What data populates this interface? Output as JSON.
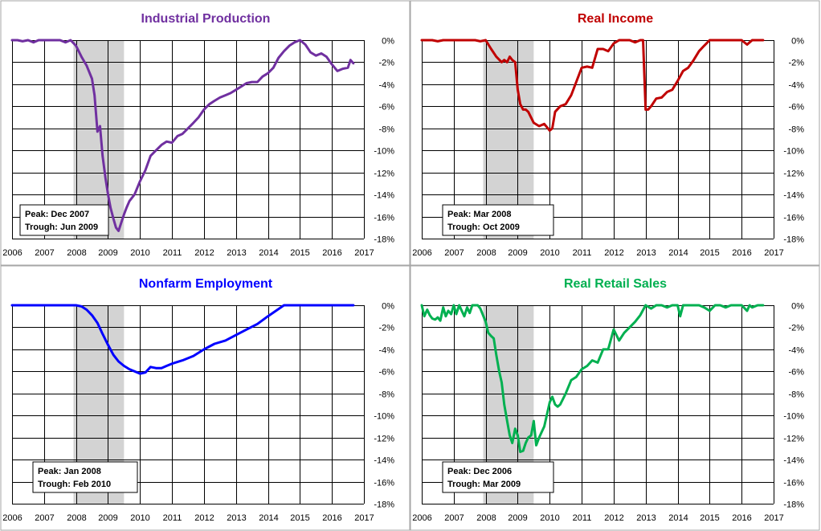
{
  "chart_data": [
    {
      "type": "line",
      "title": "Industrial Production",
      "title_color": "#7030a0",
      "series": [
        {
          "color": "#7030a0",
          "x": [
            2006.0,
            2006.17,
            2006.33,
            2006.5,
            2006.67,
            2006.83,
            2007.0,
            2007.17,
            2007.33,
            2007.5,
            2007.67,
            2007.83,
            2008.0,
            2008.17,
            2008.33,
            2008.5,
            2008.58,
            2008.67,
            2008.75,
            2008.83,
            2008.92,
            2009.0,
            2009.08,
            2009.17,
            2009.25,
            2009.33,
            2009.42,
            2009.5,
            2009.58,
            2009.67,
            2009.83,
            2010.0,
            2010.17,
            2010.33,
            2010.5,
            2010.67,
            2010.83,
            2011.0,
            2011.17,
            2011.33,
            2011.5,
            2011.67,
            2011.83,
            2012.0,
            2012.17,
            2012.33,
            2012.5,
            2012.67,
            2012.83,
            2013.0,
            2013.17,
            2013.33,
            2013.5,
            2013.67,
            2013.83,
            2014.0,
            2014.17,
            2014.33,
            2014.5,
            2014.67,
            2014.83,
            2015.0,
            2015.17,
            2015.33,
            2015.5,
            2015.67,
            2015.83,
            2016.0,
            2016.17,
            2016.33,
            2016.5,
            2016.58,
            2016.67
          ],
          "values": [
            0,
            0,
            -0.1,
            0,
            -0.2,
            0,
            0,
            0,
            0,
            0,
            -0.2,
            0,
            -0.5,
            -1.5,
            -2.3,
            -3.5,
            -5.0,
            -8.3,
            -7.8,
            -10.5,
            -12.5,
            -14.0,
            -15.2,
            -16.2,
            -17.0,
            -17.3,
            -16.5,
            -15.8,
            -15.2,
            -14.6,
            -14.0,
            -12.8,
            -11.8,
            -10.5,
            -10.0,
            -9.5,
            -9.2,
            -9.3,
            -8.7,
            -8.5,
            -8.0,
            -7.5,
            -7.0,
            -6.3,
            -5.8,
            -5.5,
            -5.2,
            -5.0,
            -4.8,
            -4.5,
            -4.2,
            -3.9,
            -3.8,
            -3.8,
            -3.3,
            -3.0,
            -2.5,
            -1.6,
            -1.0,
            -0.5,
            -0.2,
            0,
            -0.4,
            -1.1,
            -1.4,
            -1.2,
            -1.5,
            -2.2,
            -2.8,
            -2.6,
            -2.5,
            -1.8,
            -2.1
          ]
        }
      ],
      "ylim": [
        -18,
        0
      ],
      "ytick_labels": [
        "0%",
        "-2%",
        "-4%",
        "-6%",
        "-8%",
        "-10%",
        "-12%",
        "-14%",
        "-16%",
        "-18%"
      ],
      "xlim": [
        2006,
        2017
      ],
      "xtick_labels": [
        "2006",
        "2007",
        "2008",
        "2009",
        "2010",
        "2011",
        "2012",
        "2013",
        "2014",
        "2015",
        "2016",
        "2017"
      ],
      "recession": [
        2007.92,
        2009.5
      ],
      "annotation": {
        "line1": "Peak: Dec 2007",
        "line2": "Trough: Jun 2009"
      },
      "grid": true
    },
    {
      "type": "line",
      "title": "Real Income",
      "title_color": "#c00000",
      "series": [
        {
          "color": "#c00000",
          "x": [
            2006.0,
            2006.17,
            2006.33,
            2006.5,
            2006.67,
            2006.83,
            2007.0,
            2007.17,
            2007.33,
            2007.5,
            2007.67,
            2007.83,
            2008.0,
            2008.17,
            2008.33,
            2008.5,
            2008.58,
            2008.67,
            2008.75,
            2008.83,
            2008.92,
            2009.0,
            2009.08,
            2009.17,
            2009.25,
            2009.33,
            2009.5,
            2009.67,
            2009.83,
            2010.0,
            2010.08,
            2010.17,
            2010.33,
            2010.5,
            2010.67,
            2010.83,
            2011.0,
            2011.17,
            2011.33,
            2011.5,
            2011.67,
            2011.83,
            2012.0,
            2012.17,
            2012.33,
            2012.5,
            2012.67,
            2012.83,
            2012.92,
            2013.0,
            2013.08,
            2013.17,
            2013.33,
            2013.5,
            2013.67,
            2013.83,
            2014.0,
            2014.17,
            2014.33,
            2014.5,
            2014.67,
            2014.83,
            2015.0,
            2015.17,
            2015.33,
            2015.5,
            2015.67,
            2015.83,
            2016.0,
            2016.17,
            2016.33,
            2016.5,
            2016.67
          ],
          "values": [
            0,
            0,
            0,
            -0.1,
            0,
            0,
            0,
            0,
            0,
            0,
            0,
            -0.1,
            0,
            -0.8,
            -1.5,
            -2.0,
            -1.8,
            -2.0,
            -1.5,
            -1.8,
            -2.0,
            -4.5,
            -5.8,
            -6.3,
            -6.3,
            -6.5,
            -7.5,
            -7.8,
            -7.6,
            -8.2,
            -8.0,
            -6.5,
            -6.0,
            -5.8,
            -5.0,
            -3.8,
            -2.5,
            -2.4,
            -2.5,
            -0.8,
            -0.8,
            -1.0,
            -0.3,
            0,
            0,
            0,
            -0.2,
            0,
            0,
            -6.3,
            -6.3,
            -6.0,
            -5.3,
            -5.2,
            -4.7,
            -4.5,
            -3.7,
            -2.8,
            -2.5,
            -1.8,
            -1.0,
            -0.5,
            0,
            0,
            0,
            0,
            0,
            0,
            0,
            -0.4,
            0,
            0,
            0
          ]
        }
      ],
      "ylim": [
        -18,
        0
      ],
      "ytick_labels": [
        "0%",
        "-2%",
        "-4%",
        "-6%",
        "-8%",
        "-10%",
        "-12%",
        "-14%",
        "-16%",
        "-18%"
      ],
      "xlim": [
        2006,
        2017
      ],
      "xtick_labels": [
        "2006",
        "2007",
        "2008",
        "2009",
        "2010",
        "2011",
        "2012",
        "2013",
        "2014",
        "2015",
        "2016",
        "2017"
      ],
      "recession": [
        2007.92,
        2009.5
      ],
      "annotation": {
        "line1": "Peak: Mar 2008",
        "line2": "Trough: Oct 2009"
      },
      "grid": true
    },
    {
      "type": "line",
      "title": "Nonfarm Employment",
      "title_color": "#0000ff",
      "series": [
        {
          "color": "#0000ff",
          "x": [
            2006.0,
            2006.5,
            2007.0,
            2007.5,
            2008.0,
            2008.17,
            2008.33,
            2008.5,
            2008.67,
            2008.83,
            2009.0,
            2009.17,
            2009.33,
            2009.5,
            2009.67,
            2009.83,
            2010.0,
            2010.17,
            2010.33,
            2010.5,
            2010.67,
            2010.83,
            2011.0,
            2011.33,
            2011.67,
            2012.0,
            2012.33,
            2012.67,
            2013.0,
            2013.33,
            2013.67,
            2014.0,
            2014.25,
            2014.5,
            2015.0,
            2015.5,
            2016.0,
            2016.5,
            2016.67
          ],
          "values": [
            0,
            0,
            0,
            0,
            0,
            -0.1,
            -0.4,
            -0.9,
            -1.6,
            -2.6,
            -3.6,
            -4.5,
            -5.1,
            -5.5,
            -5.8,
            -6.0,
            -6.2,
            -6.1,
            -5.6,
            -5.7,
            -5.7,
            -5.5,
            -5.3,
            -5.0,
            -4.6,
            -4.0,
            -3.5,
            -3.2,
            -2.7,
            -2.2,
            -1.7,
            -1.0,
            -0.5,
            0,
            0,
            0,
            0,
            0,
            0
          ]
        }
      ],
      "ylim": [
        -18,
        0
      ],
      "ytick_labels": [
        "0%",
        "-2%",
        "-4%",
        "-6%",
        "-8%",
        "-10%",
        "-12%",
        "-14%",
        "-16%",
        "-18%"
      ],
      "xlim": [
        2006,
        2017
      ],
      "xtick_labels": [
        "2006",
        "2007",
        "2008",
        "2009",
        "2010",
        "2011",
        "2012",
        "2013",
        "2014",
        "2015",
        "2016",
        "2017"
      ],
      "recession": [
        2007.92,
        2009.5
      ],
      "annotation": {
        "line1": "Peak: Jan 2008",
        "line2": "Trough: Feb 2010"
      },
      "grid": true
    },
    {
      "type": "line",
      "title": "Real Retail Sales",
      "title_color": "#00b050",
      "series": [
        {
          "color": "#00b050",
          "x": [
            2006.0,
            2006.08,
            2006.17,
            2006.25,
            2006.33,
            2006.42,
            2006.5,
            2006.58,
            2006.67,
            2006.75,
            2006.83,
            2006.92,
            2007.0,
            2007.08,
            2007.17,
            2007.25,
            2007.33,
            2007.42,
            2007.5,
            2007.58,
            2007.67,
            2007.75,
            2007.83,
            2008.0,
            2008.08,
            2008.17,
            2008.25,
            2008.33,
            2008.42,
            2008.5,
            2008.58,
            2008.67,
            2008.75,
            2008.83,
            2008.92,
            2009.0,
            2009.08,
            2009.17,
            2009.25,
            2009.33,
            2009.42,
            2009.5,
            2009.58,
            2009.67,
            2009.75,
            2009.83,
            2010.0,
            2010.08,
            2010.17,
            2010.25,
            2010.33,
            2010.5,
            2010.67,
            2010.83,
            2011.0,
            2011.17,
            2011.33,
            2011.5,
            2011.67,
            2011.83,
            2012.0,
            2012.17,
            2012.33,
            2012.5,
            2012.67,
            2012.83,
            2013.0,
            2013.17,
            2013.33,
            2013.5,
            2013.67,
            2013.83,
            2014.0,
            2014.08,
            2014.17,
            2014.33,
            2014.5,
            2014.67,
            2014.83,
            2015.0,
            2015.17,
            2015.33,
            2015.5,
            2015.67,
            2015.83,
            2016.0,
            2016.17,
            2016.25,
            2016.33,
            2016.5,
            2016.67
          ],
          "values": [
            0,
            -1.0,
            -0.4,
            -0.9,
            -1.2,
            -1.3,
            -1.1,
            -1.4,
            -0.2,
            -1.0,
            -0.5,
            -0.8,
            0,
            -0.8,
            0,
            -0.5,
            -1.0,
            -0.2,
            -0.7,
            0,
            0,
            0,
            -0.3,
            -1.5,
            -2.5,
            -2.8,
            -3.0,
            -4.5,
            -6.0,
            -7.0,
            -9.0,
            -10.5,
            -11.8,
            -12.5,
            -11.2,
            -11.8,
            -13.3,
            -13.2,
            -12.5,
            -12.0,
            -11.8,
            -10.5,
            -12.7,
            -12.0,
            -11.5,
            -11.0,
            -8.8,
            -8.3,
            -9.0,
            -9.2,
            -9.0,
            -8.0,
            -6.8,
            -6.5,
            -5.8,
            -5.5,
            -5.0,
            -5.2,
            -4.0,
            -4.0,
            -2.2,
            -3.2,
            -2.5,
            -2.0,
            -1.5,
            -0.9,
            0,
            -0.3,
            0,
            0,
            -0.2,
            0,
            0,
            -1.0,
            0,
            0,
            0,
            0,
            -0.2,
            -0.5,
            0,
            0,
            -0.2,
            0,
            0,
            0,
            -0.5,
            0,
            -0.2,
            0,
            0
          ]
        }
      ],
      "ylim": [
        -18,
        0
      ],
      "ytick_labels": [
        "0%",
        "-2%",
        "-4%",
        "-6%",
        "-8%",
        "-10%",
        "-12%",
        "-14%",
        "-16%",
        "-18%"
      ],
      "xlim": [
        2006,
        2017
      ],
      "xtick_labels": [
        "2006",
        "2007",
        "2008",
        "2009",
        "2010",
        "2011",
        "2012",
        "2013",
        "2014",
        "2015",
        "2016",
        "2017"
      ],
      "recession": [
        2007.92,
        2009.5
      ],
      "annotation": {
        "line1": "Peak: Dec 2006",
        "line2": "Trough: Mar 2009"
      },
      "grid": true
    }
  ]
}
